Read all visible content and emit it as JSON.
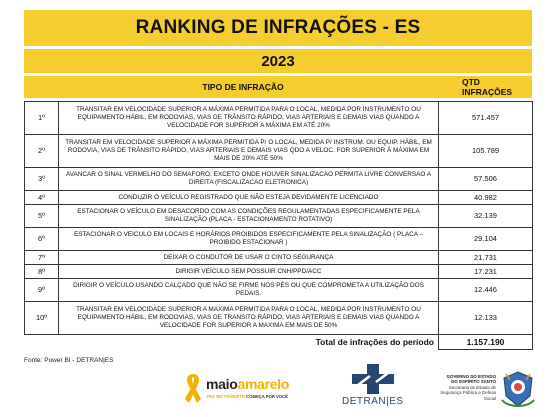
{
  "header": {
    "title": "RANKING DE INFRAÇÕES - ES",
    "year": "2023",
    "col_type": "TIPO DE INFRAÇÃO",
    "col_qtd": "QTD INFRAÇÕES"
  },
  "rows": [
    {
      "rank": "1º",
      "text": "TRANSITAR EM VELOCIDADE SUPERIOR A MÁXIMA PERMITIDA PARA O LOCAL, MEDIDA POR INSTRUMENTO OU EQUIPAMENTO HÁBIL, EM RODOVIAS, VIAS DE TRÂNSITO RÁPIDO, VIAS ARTERIAIS E DEMAIS VIAS QUANDO A VELOCIDADE FOR SUPERIOR A MÁXIMA EM ATÉ 20%",
      "qtd": "571.457"
    },
    {
      "rank": "2º",
      "text": "TRANSITAR EM VELOCIDADE SUPERIOR A MÁXIMA PERMITIDA P/ O LOCAL, MEDIDA P/ INSTRUM. OU EQUIP. HÁBIL, EM RODOVIA, VIAS DE TRÂNSITO RÁPIDO, VIAS ARTERIAIS E DEMAIS VIAS QDO A VELOC. FOR SUPERIOR À MÁXIMA EM MAIS DE  20% ATÉ 50%",
      "qtd": "105.789"
    },
    {
      "rank": "3º",
      "text": "AVANCAR O SINAL VERMELHO DO SEMAFORO, EXCETO  ONDE HOUVER SINALIZACAO PERMITA LIVRE CONVERSAO A DIREITA (FISCALIZACAO ELETRONICA)",
      "qtd": "57.506"
    },
    {
      "rank": "4º",
      "text": "CONDUZIR O VEÍCULO REGISTRADO QUE NÃO ESTEJA DEVIDAMENTE LICENCIADO",
      "qtd": "40.982"
    },
    {
      "rank": "5º",
      "text": "ESTACIONAR O VEÍCULO EM DESACORDO COM AS CONDIÇÕES REGULAMENTADAS ESPECIFICAMENTE PELA SINALIZAÇÃO (PLACA - ESTACIONAMENTO ROTATIVO)",
      "qtd": "32.139"
    },
    {
      "rank": "6º",
      "text": "ESTACIONAR O VEICULO EM LOCAIS E HORÁRIOS PROIBIDOS ESPECIFICAMENTE PELA SINALIZAÇÃO ( PLACA – PROIBIDO ESTACIONAR )",
      "qtd": "29.104"
    },
    {
      "rank": "7º",
      "text": "DEIXAR O CONDUTOR DE USAR O CINTO SEGURANÇA",
      "qtd": "21.731"
    },
    {
      "rank": "8º",
      "text": "DIRIGIR VEÍCULO SEM POSSUIR CNH/PPD/ACC",
      "qtd": "17.231"
    },
    {
      "rank": "9º",
      "text": "DIRIGIR O VEÍCULO USANDO CALÇADO QUE NÃO SE FIRME NOS PÉS OU QUE COMPROMETA A UTILIZAÇÃO DOS PEDAIS.",
      "qtd": "12.446"
    },
    {
      "rank": "10º",
      "text": "TRANSITAR EM VELOCIDADE SUPERIOR A MAXIMA PERMITIDA PARA O LOCAL, MEDIDA POR INSTRUMENTO OU EQUIPAMENTO HÁBIL, EM RODOVIAS, VIAS DE TRANSITO RÁPIDO, VIAS ARTERIAIS E DEMAIS VIAS QUANDO A VELOCIDADE FOR SUPERIOR A MAXIMA EM MAIS DE 50%",
      "qtd": "12.133"
    }
  ],
  "total": {
    "label": "Total de infrações do período",
    "value": "1.157.190"
  },
  "source": "Fonte: Power BI - DETRAN|ES",
  "logos": {
    "maio_part1": "maio",
    "maio_part2": "amarelo",
    "maio_tagline_1": "PAZ NO TRÂNSITO ",
    "maio_tagline_2": "COMEÇA POR VOCÊ",
    "detran": "DETRAN|ES",
    "gov_line1": "GOVERNO DO ESTADO",
    "gov_line2": "DO ESPÍRITO SANTO",
    "gov_line3": "Secretaria de Estado de",
    "gov_line4": "Segurança Pública e Defesa Social"
  },
  "colors": {
    "accent_yellow": "#f5cd2e",
    "detran_blue": "#27466f",
    "ribbon_yellow": "#f0b400"
  },
  "icons": [
    "yellow-ribbon-icon",
    "detran-cross-icon",
    "state-coat-of-arms-icon"
  ]
}
